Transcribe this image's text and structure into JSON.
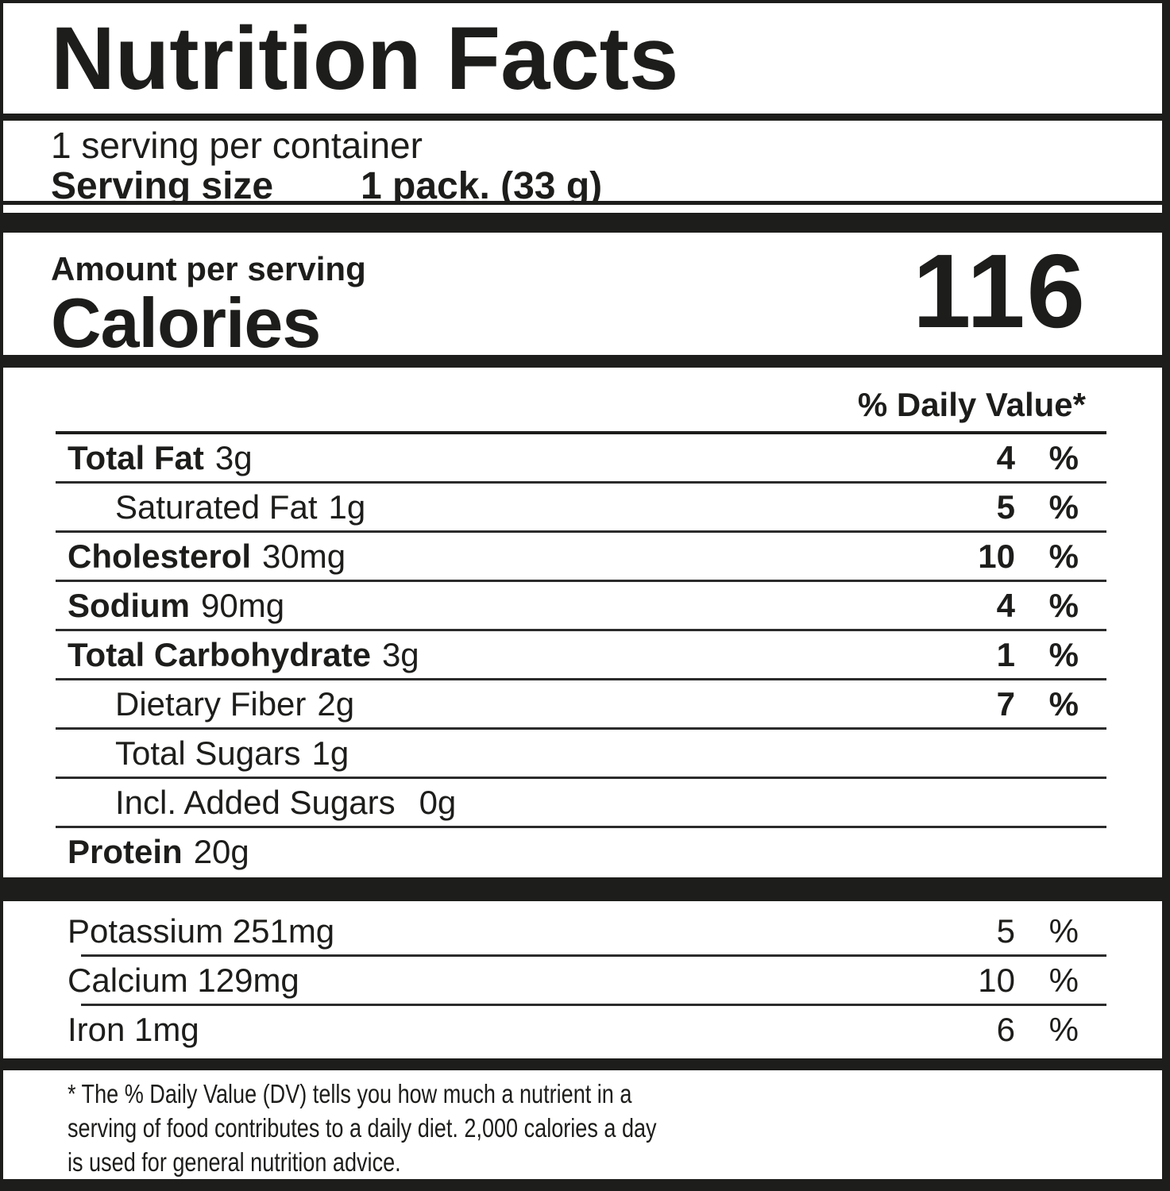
{
  "label": {
    "title": "Nutrition Facts",
    "servings_per_container": "1 serving per container",
    "serving_size_label": "Serving size",
    "serving_size_value": "1 pack. (33 g)",
    "amount_per_serving": "Amount per serving",
    "calories_label": "Calories",
    "calories_value": "116",
    "daily_value_header": "% Daily Value*",
    "percent_sign": "%",
    "nutrients": [
      {
        "name": "Total Fat",
        "amount": "3g",
        "dv": "4"
      },
      {
        "name": "Saturated Fat",
        "amount": "1g",
        "dv": "5"
      },
      {
        "name": "Cholesterol",
        "amount": "30mg",
        "dv": "10"
      },
      {
        "name": "Sodium",
        "amount": "90mg",
        "dv": "4"
      },
      {
        "name": "Total Carbohydrate",
        "amount": "3g",
        "dv": "1"
      },
      {
        "name": "Dietary Fiber",
        "amount": "2g",
        "dv": "7"
      },
      {
        "name": "Total Sugars",
        "amount": "1g",
        "dv": ""
      },
      {
        "name": "Incl. Added Sugars",
        "amount": "0g",
        "dv": ""
      },
      {
        "name": "Protein",
        "amount": "20g",
        "dv": ""
      }
    ],
    "minerals": [
      {
        "name": "Potassium 251mg",
        "dv": "5"
      },
      {
        "name": "Calcium 129mg",
        "dv": "10"
      },
      {
        "name": "Iron 1mg",
        "dv": "6"
      }
    ],
    "footnote_lines": [
      "* The % Daily Value (DV) tells you how much a nutrient in a",
      "serving of food contributes to a daily diet. 2,000 calories a day",
      "is used for general nutrition advice."
    ],
    "colors": {
      "ink": "#1d1d1b",
      "background": "#ffffff"
    }
  }
}
